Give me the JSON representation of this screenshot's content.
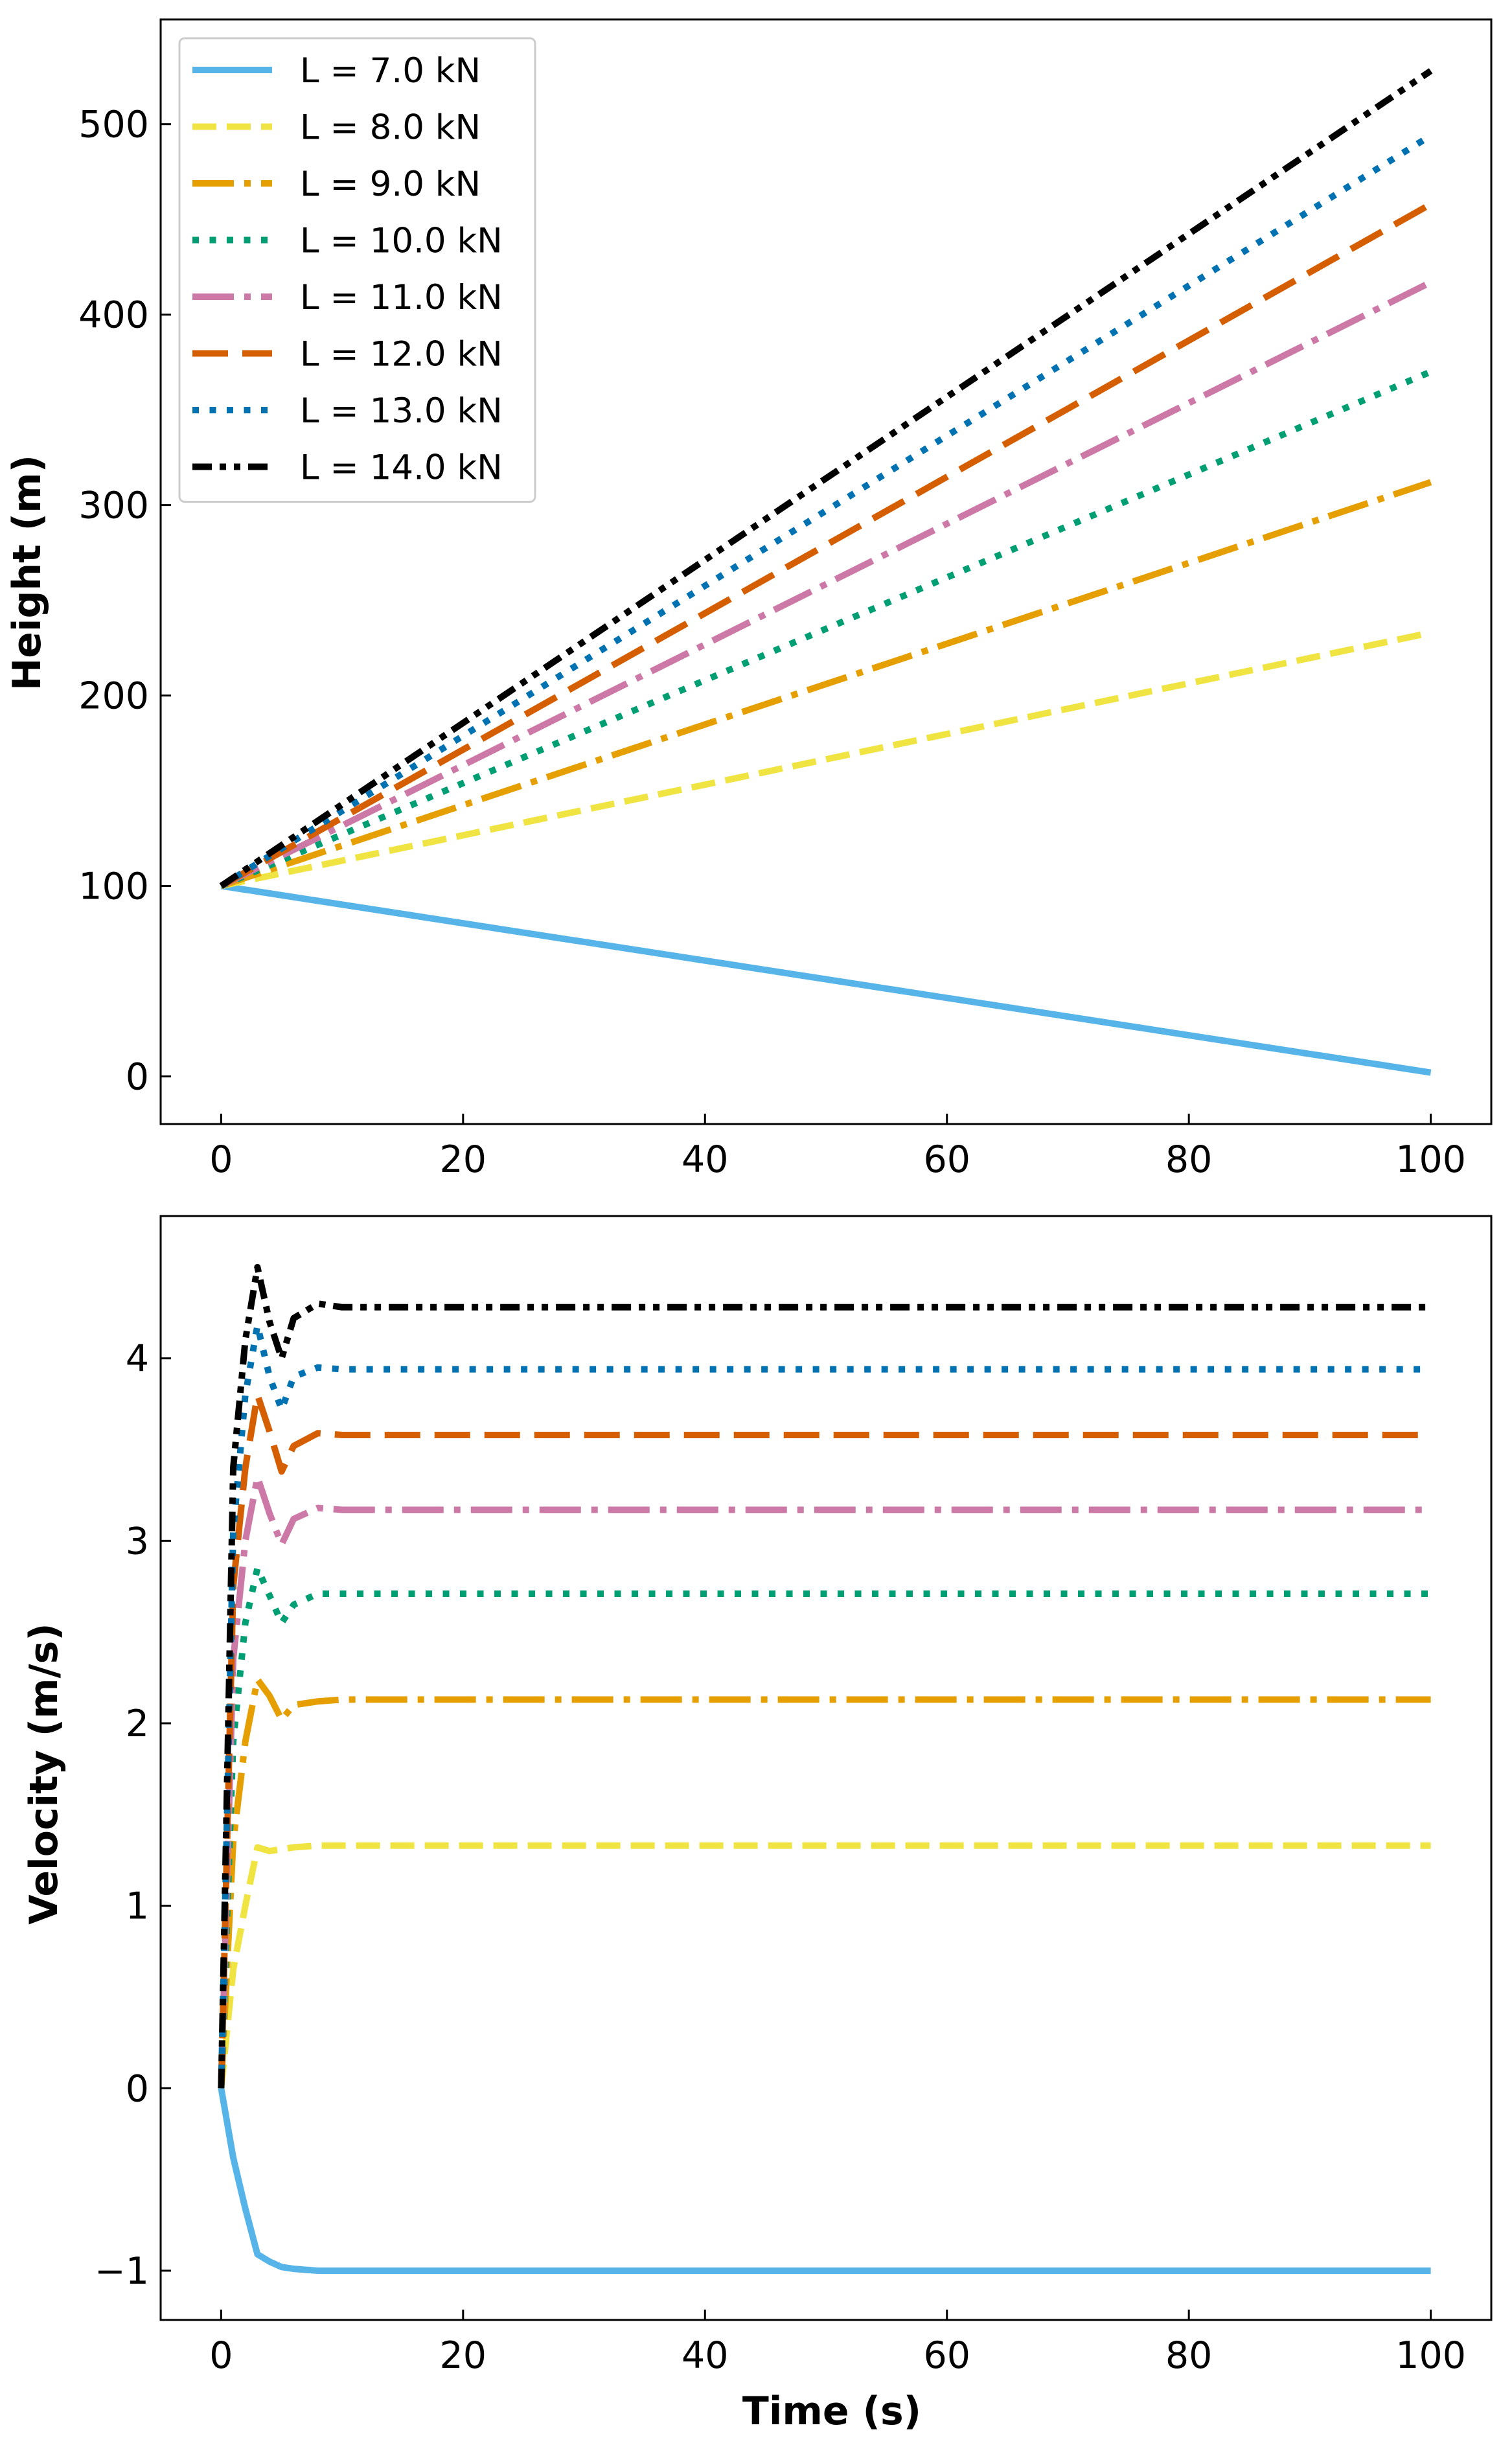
{
  "chart_data": [
    {
      "type": "line",
      "title": "",
      "xlabel": "",
      "ylabel": "Height (m)",
      "xlim": [
        -5,
        105
      ],
      "ylim": [
        -25,
        555
      ],
      "xticks": [
        0,
        20,
        40,
        60,
        80,
        100
      ],
      "yticks": [
        0,
        100,
        200,
        300,
        400,
        500
      ],
      "grid": false,
      "legend_position": "top-left",
      "series": [
        {
          "name": "L = 7.0 kN",
          "color": "#56B4E9",
          "dash": "solid",
          "x": [
            0,
            100
          ],
          "y": [
            100,
            2
          ]
        },
        {
          "name": "L = 8.0 kN",
          "color": "#F0E442",
          "dash": "dashed",
          "x": [
            0,
            100
          ],
          "y": [
            100,
            233
          ]
        },
        {
          "name": "L = 9.0 kN",
          "color": "#E69F00",
          "dash": "dashdot",
          "x": [
            0,
            100
          ],
          "y": [
            100,
            312
          ]
        },
        {
          "name": "L = 10.0 kN",
          "color": "#009E73",
          "dash": "dotted",
          "x": [
            0,
            100
          ],
          "y": [
            100,
            370
          ]
        },
        {
          "name": "L = 11.0 kN",
          "color": "#CC79A7",
          "dash": "dashdot",
          "x": [
            0,
            100
          ],
          "y": [
            100,
            417
          ]
        },
        {
          "name": "L = 12.0 kN",
          "color": "#D55E00",
          "dash": "longdash",
          "x": [
            0,
            100
          ],
          "y": [
            100,
            458
          ]
        },
        {
          "name": "L = 13.0 kN",
          "color": "#0072B2",
          "dash": "dotted",
          "x": [
            0,
            100
          ],
          "y": [
            100,
            494
          ]
        },
        {
          "name": "L = 14.0 kN",
          "color": "#000000",
          "dash": "dashdotdot",
          "x": [
            0,
            100
          ],
          "y": [
            100,
            528
          ]
        }
      ]
    },
    {
      "type": "line",
      "title": "",
      "xlabel": "Time (s)",
      "ylabel": "Velocity (m/s)",
      "xlim": [
        -5,
        105
      ],
      "ylim": [
        -1.27,
        4.78
      ],
      "xticks": [
        0,
        20,
        40,
        60,
        80,
        100
      ],
      "yticks": [
        -1,
        0,
        1,
        2,
        3,
        4
      ],
      "ytick_labels": [
        "−1",
        "0",
        "1",
        "2",
        "3",
        "4"
      ],
      "grid": false,
      "series": [
        {
          "name": "L = 7.0 kN",
          "color": "#56B4E9",
          "dash": "solid",
          "x": [
            0,
            1,
            2,
            3,
            4,
            5,
            6,
            8,
            10,
            100
          ],
          "y": [
            0,
            -0.38,
            -0.66,
            -0.91,
            -0.95,
            -0.98,
            -0.99,
            -1.0,
            -1.0,
            -1.0
          ]
        },
        {
          "name": "L = 8.0 kN",
          "color": "#F0E442",
          "dash": "dashed",
          "x": [
            0,
            1,
            2,
            3,
            4,
            5,
            6,
            8,
            10,
            100
          ],
          "y": [
            0,
            0.65,
            1.0,
            1.32,
            1.3,
            1.31,
            1.32,
            1.33,
            1.33,
            1.33
          ]
        },
        {
          "name": "L = 9.0 kN",
          "color": "#E69F00",
          "dash": "dashdot",
          "x": [
            0,
            1,
            2,
            3,
            4,
            5,
            6,
            8,
            10,
            100
          ],
          "y": [
            0,
            1.35,
            1.9,
            2.24,
            2.15,
            2.02,
            2.1,
            2.12,
            2.13,
            2.13
          ]
        },
        {
          "name": "L = 10.0 kN",
          "color": "#009E73",
          "dash": "dotted",
          "x": [
            0,
            1,
            2,
            3,
            4,
            5,
            6,
            8,
            10,
            100
          ],
          "y": [
            0,
            1.9,
            2.55,
            2.85,
            2.7,
            2.55,
            2.65,
            2.71,
            2.71,
            2.71
          ]
        },
        {
          "name": "L = 11.0 kN",
          "color": "#CC79A7",
          "dash": "dashdot",
          "x": [
            0,
            1,
            2,
            3,
            4,
            5,
            6,
            8,
            10,
            100
          ],
          "y": [
            0,
            2.35,
            3.0,
            3.35,
            3.15,
            2.98,
            3.12,
            3.18,
            3.17,
            3.17
          ]
        },
        {
          "name": "L = 12.0 kN",
          "color": "#D55E00",
          "dash": "longdash",
          "x": [
            0,
            1,
            2,
            3,
            4,
            5,
            6,
            8,
            10,
            100
          ],
          "y": [
            0,
            2.75,
            3.4,
            3.8,
            3.6,
            3.38,
            3.52,
            3.59,
            3.58,
            3.58
          ]
        },
        {
          "name": "L = 13.0 kN",
          "color": "#0072B2",
          "dash": "dotted",
          "x": [
            0,
            1,
            2,
            3,
            4,
            5,
            6,
            8,
            10,
            100
          ],
          "y": [
            0,
            3.05,
            3.8,
            4.18,
            3.9,
            3.72,
            3.9,
            3.95,
            3.94,
            3.94
          ]
        },
        {
          "name": "L = 14.0 kN",
          "color": "#000000",
          "dash": "dashdotdot",
          "x": [
            0,
            1,
            2,
            3,
            4,
            5,
            6,
            8,
            10,
            100
          ],
          "y": [
            0,
            3.4,
            4.1,
            4.5,
            4.2,
            4.0,
            4.22,
            4.3,
            4.28,
            4.28
          ]
        }
      ]
    }
  ]
}
